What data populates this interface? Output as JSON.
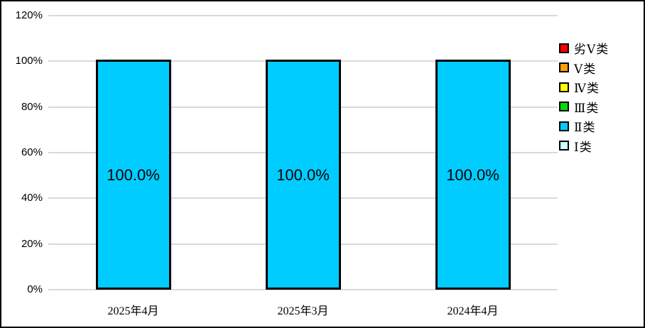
{
  "chart_data": {
    "type": "bar",
    "subtype": "100%-stacked-column",
    "title": "",
    "categories": [
      "2025年4月",
      "2025年3月",
      "2024年4月"
    ],
    "series": [
      {
        "name": "Ⅱ类",
        "values": [
          100.0,
          100.0,
          100.0
        ],
        "color": "#00CCFF"
      }
    ],
    "bar_labels": [
      "100.0%",
      "100.0%",
      "100.0%"
    ],
    "y_ticks_top_to_bottom": [
      "120%",
      "100%",
      "80%",
      "60%",
      "40%",
      "20%",
      "0%"
    ],
    "y_tick_values_top_to_bottom": [
      120,
      100,
      80,
      60,
      40,
      20,
      0
    ],
    "ylim": [
      0,
      120
    ],
    "grid": true,
    "legend_position": "right",
    "legend": [
      {
        "label": "劣Ⅴ类",
        "color": "#FF0000"
      },
      {
        "label": "Ⅴ类",
        "color": "#FFA000"
      },
      {
        "label": "Ⅳ类",
        "color": "#FFFF00"
      },
      {
        "label": "Ⅲ类",
        "color": "#00DC00"
      },
      {
        "label": "Ⅱ类",
        "color": "#00CCFF"
      },
      {
        "label": "Ⅰ类",
        "color": "#CCFFFF"
      }
    ]
  },
  "colors": {
    "bar_fill": "#00CCFF",
    "bar_border": "#000000",
    "gridline": "#D9D9D9",
    "background": "#FFFFFF",
    "canvas_border": "#000000",
    "text": "#000000"
  }
}
